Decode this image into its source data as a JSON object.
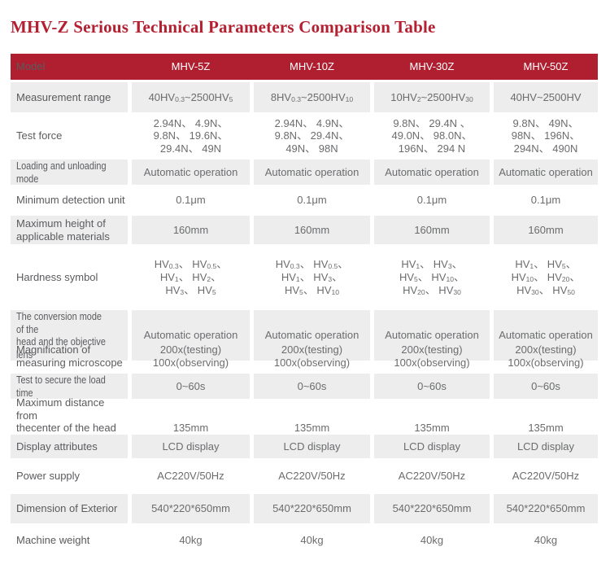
{
  "page": {
    "title": "MHV-Z Serious Technical Parameters Comparison Table"
  },
  "colors": {
    "title_red": "#b32031",
    "header_bg": "#b01f30",
    "header_text": "#ffffff",
    "alt_row_bg": "#ededed",
    "label_text": "#5a5b5e",
    "value_text": "#6b6c6e"
  },
  "table": {
    "header": {
      "model_label": "Model",
      "columns": [
        "MHV-5Z",
        "MHV-10Z",
        "MHV-30Z",
        "MHV-50Z"
      ]
    },
    "rows": [
      {
        "label": "Measurement range",
        "values": [
          "40HV_{0.3}~2500HV_{5}",
          "8HV_{0.3}~2500HV_{10}",
          "10HV_{2}~2500HV_{30}",
          "40HV~2500HV"
        ]
      },
      {
        "label": "Test force",
        "values": [
          "2.94N、 4.9N、\n9.8N、 19.6N、\n29.4N、 49N",
          "2.94N、 4.9N、\n9.8N、 29.4N、\n49N、 98N",
          "9.8N、 29.4N 、\n49.0N、 98.0N、\n196N、 294 N",
          "9.8N、 49N、\n98N、 196N、\n294N、 490N"
        ]
      },
      {
        "label": "Loading and unloading mode",
        "values": [
          "Automatic operation",
          "Automatic operation",
          "Automatic operation",
          "Automatic operation"
        ]
      },
      {
        "label": "Minimum detection unit",
        "values": [
          "0.1μm",
          "0.1μm",
          "0.1μm",
          "0.1μm"
        ]
      },
      {
        "label": "Maximum height of\napplicable materials",
        "values": [
          "160mm",
          "160mm",
          "160mm",
          "160mm"
        ]
      },
      {
        "label": "Hardness symbol",
        "values": [
          "HV_{0.3}、 HV_{0.5}、\nHV_{1}、 HV_{2}、\nHV_{3}、 HV_{5}",
          "HV_{0.3}、 HV_{0.5}、\nHV_{1}、 HV_{3}、\nHV_{5}、 HV_{10}",
          "HV_{1}、 HV_{3}、\nHV_{5}、 HV_{10}、\nHV_{20}、 HV_{30}",
          "HV_{1}、 HV_{5}、\nHV_{10}、 HV_{20}、\nHV_{30}、 HV_{50}"
        ]
      },
      {
        "label": "The conversion mode of the\nhead and the objective lens",
        "values": [
          "Automatic operation",
          "Automatic operation",
          "Automatic operation",
          "Automatic operation"
        ]
      },
      {
        "label": "Magnification of\nmeasuring microscope",
        "values": [
          "200x(testing)\n100x(observing)",
          "200x(testing)\n100x(observing)",
          "200x(testing)\n100x(observing)",
          "200x(testing)\n100x(observing)"
        ]
      },
      {
        "label": "Test to secure the load time",
        "values": [
          "0~60s",
          "0~60s",
          "0~60s",
          "0~60s"
        ]
      },
      {
        "label": "Maximum distance from\nthecenter of the head to\nthe machine wall",
        "values": [
          "135mm",
          "135mm",
          "135mm",
          "135mm"
        ]
      },
      {
        "label": "Display attributes",
        "values": [
          "LCD display",
          "LCD display",
          "LCD display",
          "LCD display"
        ]
      },
      {
        "label": "Power supply",
        "values": [
          "AC220V/50Hz",
          "AC220V/50Hz",
          "AC220V/50Hz",
          "AC220V/50Hz"
        ]
      },
      {
        "label": "Dimension of Exterior",
        "values": [
          "540*220*650mm",
          "540*220*650mm",
          "540*220*650mm",
          "540*220*650mm"
        ]
      },
      {
        "label": "Machine weight",
        "values": [
          "40kg",
          "40kg",
          "40kg",
          "40kg"
        ]
      }
    ]
  }
}
